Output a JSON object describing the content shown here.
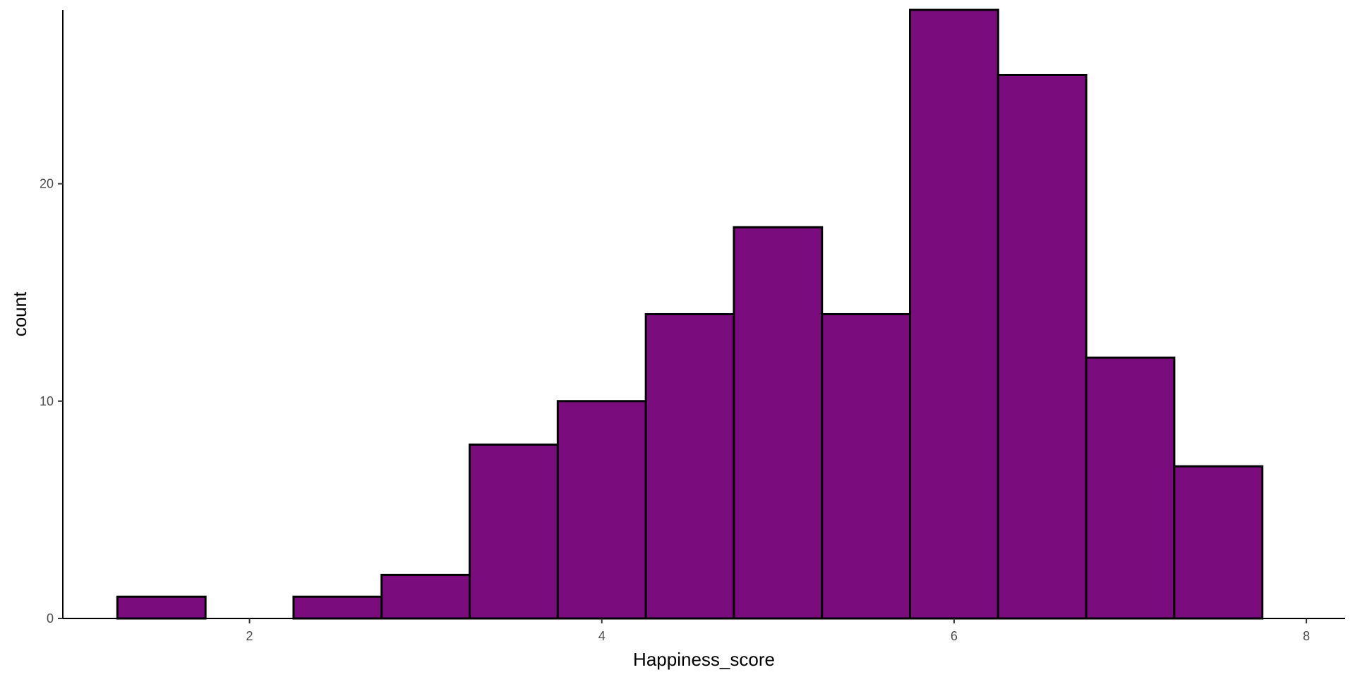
{
  "chart_data": {
    "type": "bar",
    "subtype": "histogram",
    "title": "",
    "xlabel": "Happiness_score",
    "ylabel": "count",
    "xlim": [
      0.94,
      8.22
    ],
    "ylim": [
      0,
      28
    ],
    "x_ticks": [
      2,
      4,
      6,
      8
    ],
    "y_ticks": [
      0,
      10,
      20
    ],
    "bin_width": 0.5,
    "bins": [
      {
        "x0": 1.25,
        "x1": 1.75,
        "count": 1
      },
      {
        "x0": 1.75,
        "x1": 2.25,
        "count": 0
      },
      {
        "x0": 2.25,
        "x1": 2.75,
        "count": 1
      },
      {
        "x0": 2.75,
        "x1": 3.25,
        "count": 2
      },
      {
        "x0": 3.25,
        "x1": 3.75,
        "count": 8
      },
      {
        "x0": 3.75,
        "x1": 4.25,
        "count": 10
      },
      {
        "x0": 4.25,
        "x1": 4.75,
        "count": 14
      },
      {
        "x0": 4.75,
        "x1": 5.25,
        "count": 18
      },
      {
        "x0": 5.25,
        "x1": 5.75,
        "count": 14
      },
      {
        "x0": 5.75,
        "x1": 6.25,
        "count": 28
      },
      {
        "x0": 6.25,
        "x1": 6.75,
        "count": 25
      },
      {
        "x0": 6.75,
        "x1": 7.25,
        "count": 12
      },
      {
        "x0": 7.25,
        "x1": 7.75,
        "count": 7
      }
    ],
    "grid": false,
    "legend": "none",
    "fill_color": "#7B0C7E",
    "edge_color": "#000000",
    "axis_color": "#000000"
  }
}
